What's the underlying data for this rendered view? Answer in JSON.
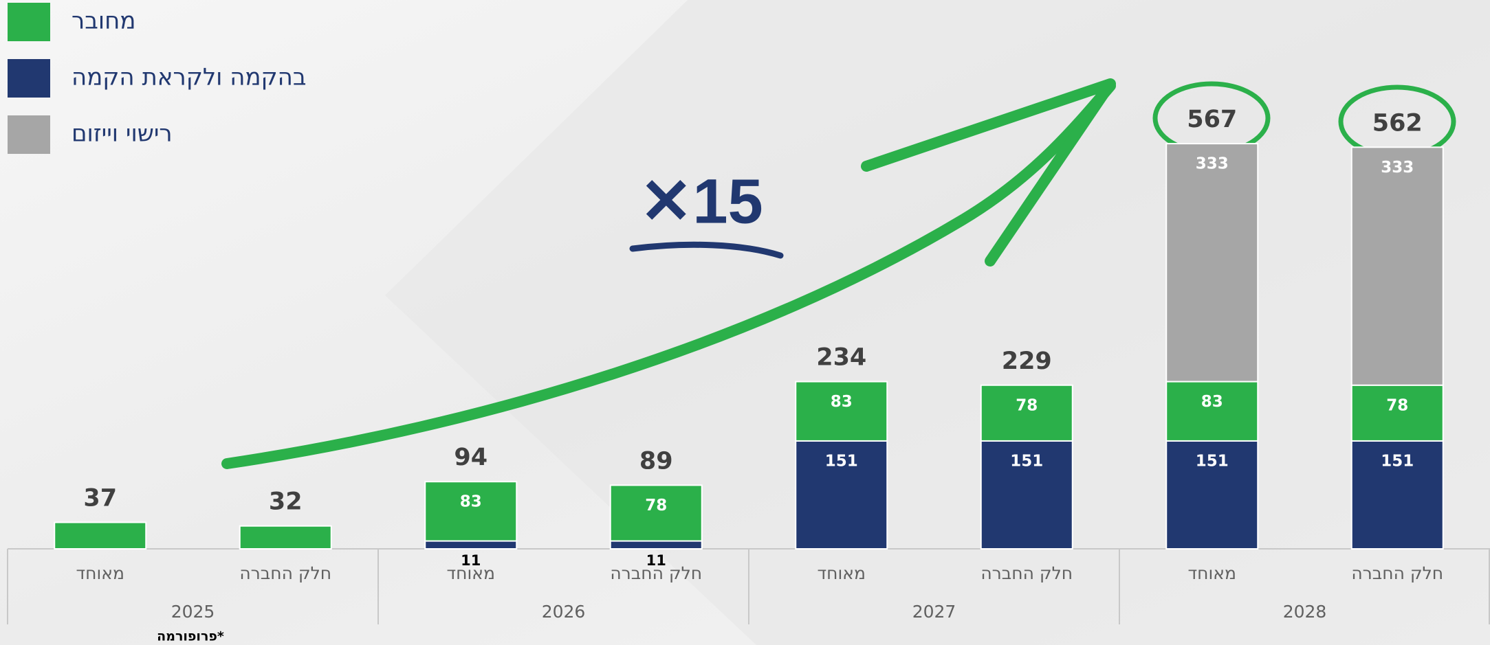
{
  "chart_data": {
    "type": "stacked_bar",
    "categories": [
      "מאוחד",
      "חלק החברה",
      "מאוחד",
      "חלק החברה",
      "מאוחד",
      "חלק החברה",
      "מאוחד",
      "חלק החברה"
    ],
    "groups": [
      "2025",
      "2026",
      "2027",
      "2028"
    ],
    "series": [
      {
        "name": "בהקמה ולקראת הקמה",
        "color": "#213870",
        "values": [
          null,
          null,
          11,
          11,
          151,
          151,
          151,
          151
        ]
      },
      {
        "name": "מחובר",
        "color": "#2bb04a",
        "values": [
          37,
          32,
          83,
          78,
          83,
          78,
          83,
          78
        ]
      },
      {
        "name": "רישוי וייזום",
        "color": "#a6a6a6",
        "values": [
          null,
          null,
          null,
          null,
          null,
          null,
          333,
          333
        ]
      }
    ],
    "totals": [
      37,
      32,
      94,
      89,
      234,
      229,
      567,
      562
    ],
    "ylim": [
      0,
      768
    ],
    "annotation": "✕15",
    "footnote": "פרופורמה*"
  }
}
